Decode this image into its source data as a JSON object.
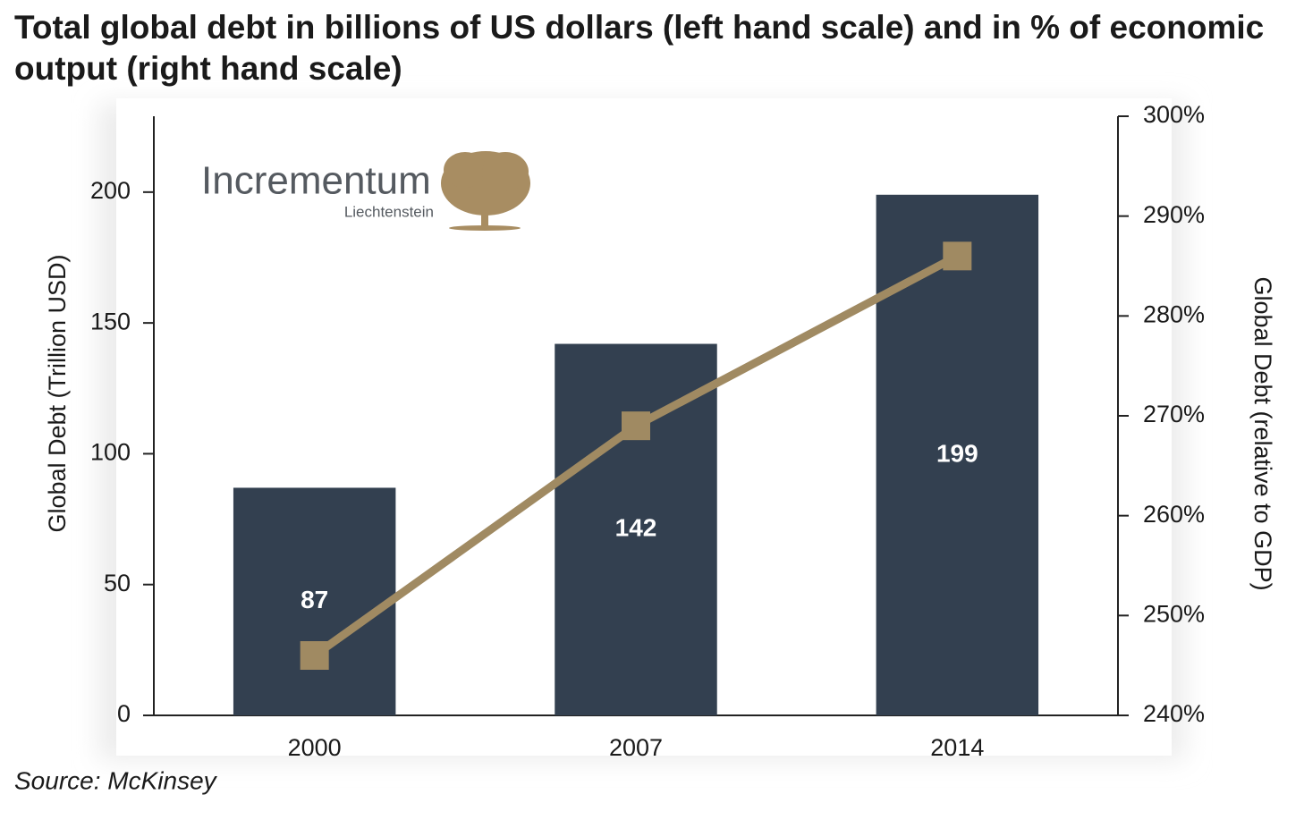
{
  "chart_data": {
    "type": "combo",
    "title": "Total global debt in billions of US dollars (left hand scale) and in % of economic output (right hand scale)",
    "y_label": "Global Debt (Trillion USD)",
    "y2_label": "Global Debt (relative to GDP)",
    "source": "Source: McKinsey",
    "logo": {
      "name": "Incrementum",
      "place": "Liechtenstein"
    },
    "categories": [
      "2000",
      "2007",
      "2014"
    ],
    "series": [
      {
        "type": "bar",
        "color": "#334050",
        "values": [
          87,
          142,
          199
        ]
      },
      {
        "type": "line",
        "axis": "y2",
        "color": "#a08a62",
        "values": [
          246,
          269,
          286
        ]
      }
    ],
    "ylim": [
      0,
      229
    ],
    "yticks": [
      0,
      50,
      100,
      150,
      200
    ],
    "y2lim": [
      240,
      300
    ],
    "y2ticks": [
      {
        "value": 240,
        "label": "240%"
      },
      {
        "value": 250,
        "label": "250%"
      },
      {
        "value": 260,
        "label": "260%"
      },
      {
        "value": 270,
        "label": "270%"
      },
      {
        "value": 280,
        "label": "280%"
      },
      {
        "value": 290,
        "label": "290%"
      },
      {
        "value": 300,
        "label": "300%"
      }
    ]
  }
}
